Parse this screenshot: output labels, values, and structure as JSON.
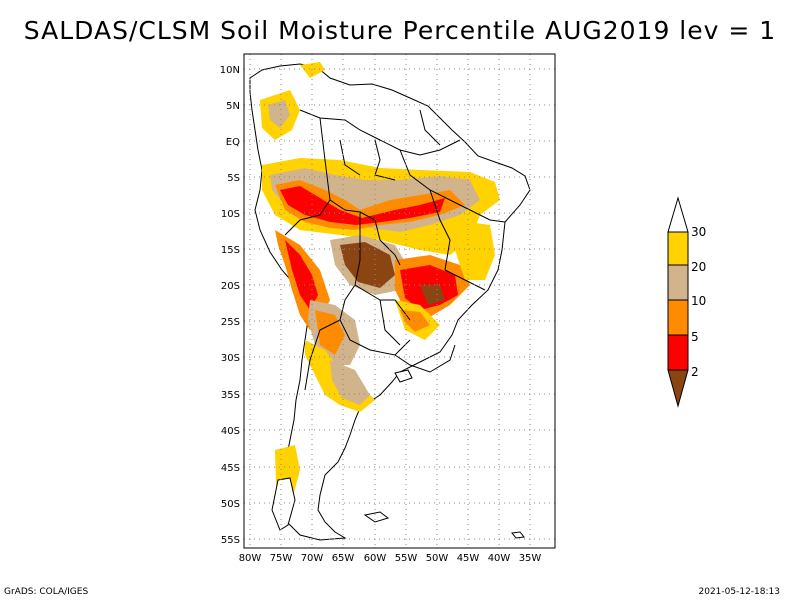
{
  "title": "SALDAS/CLSM Soil Moisture Percentile AUG2019 lev = 1",
  "map": {
    "lat_labels": [
      "10N",
      "5N",
      "EQ",
      "5S",
      "10S",
      "15S",
      "20S",
      "25S",
      "30S",
      "35S",
      "40S",
      "45S",
      "50S",
      "55S"
    ],
    "lon_labels": [
      "80W",
      "75W",
      "70W",
      "65W",
      "60W",
      "55W",
      "50W",
      "45W",
      "40W",
      "35W"
    ],
    "lat_range": [
      -56,
      11
    ],
    "lon_range": [
      -81,
      -32
    ],
    "grid": true
  },
  "legend": {
    "bins": [
      {
        "label": "30",
        "color": "#ffffff"
      },
      {
        "label": "20",
        "color": "#ffd200"
      },
      {
        "label": "10",
        "color": "#d2b48c"
      },
      {
        "label": "5",
        "color": "#ff8c00"
      },
      {
        "label": "2",
        "color": "#ff0000"
      },
      {
        "label": "",
        "color": "#8b4513"
      }
    ]
  },
  "footer": {
    "left": "GrADS: COLA/IGES",
    "right": "2021-05-12-18:13"
  }
}
